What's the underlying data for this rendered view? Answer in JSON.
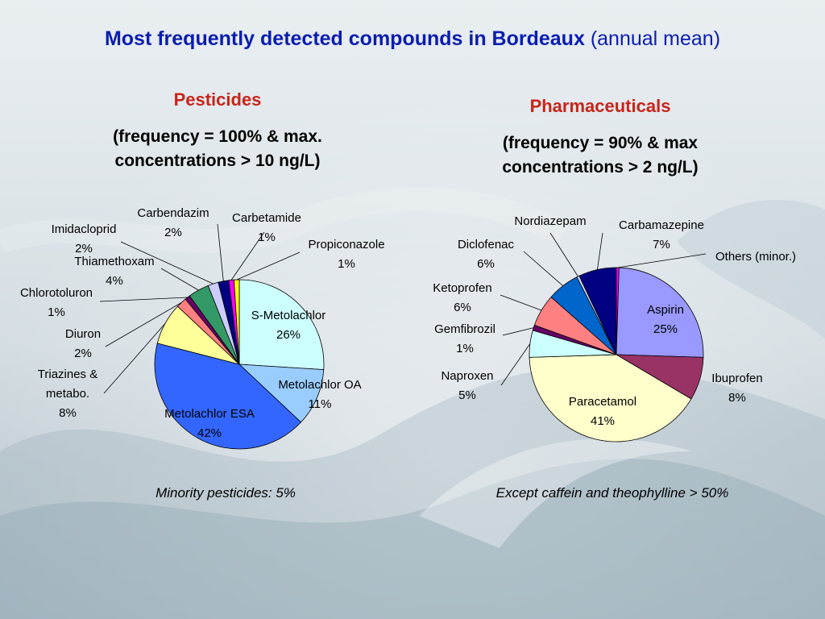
{
  "title": {
    "main": "Most frequently detected compounds in Bordeaux",
    "suffix": "(annual mean)"
  },
  "pesticides": {
    "heading": "Pesticides",
    "criteria_line1": "(frequency = 100% & max.",
    "criteria_line2": "concentrations > 10 ng/L)",
    "footnote": "Minority pesticides: 5%"
  },
  "pharmaceuticals": {
    "heading": "Pharmaceuticals",
    "criteria_line1": "(frequency = 90% & max",
    "criteria_line2": "concentrations > 2 ng/L)",
    "footnote": "Except caffein and theophylline > 50%"
  },
  "chart_data": [
    {
      "type": "pie",
      "start": "12 o'clock",
      "direction": "clockwise",
      "slices": [
        {
          "name": "S-Metolachlor",
          "pct": "26%",
          "value": 26,
          "color": "#ccffff"
        },
        {
          "name": "Metolachlor OA",
          "pct": "11%",
          "value": 11,
          "color": "#99ccff"
        },
        {
          "name": "Metolachlor ESA",
          "pct": "42%",
          "value": 42,
          "color": "#3366ff"
        },
        {
          "name": "Triazines & metabo.",
          "pct": "8%",
          "value": 8,
          "color": "#ffff99"
        },
        {
          "name": "Diuron",
          "pct": "2%",
          "value": 2,
          "color": "#ff8080"
        },
        {
          "name": "Chlorotoluron",
          "pct": "1%",
          "value": 1,
          "color": "#660066"
        },
        {
          "name": "Thiamethoxam",
          "pct": "4%",
          "value": 4,
          "color": "#339966"
        },
        {
          "name": "Imidacloprid",
          "pct": "2%",
          "value": 2,
          "color": "#ccccff"
        },
        {
          "name": "Carbendazim",
          "pct": "2%",
          "value": 2,
          "color": "#000080"
        },
        {
          "name": "Carbetamide",
          "pct": "1%",
          "value": 1,
          "color": "#ff00ff"
        },
        {
          "name": "Propiconazole",
          "pct": "1%",
          "value": 1,
          "color": "#ffff00"
        }
      ]
    },
    {
      "type": "pie",
      "start": "12 o'clock",
      "direction": "clockwise",
      "slices": [
        {
          "name": "Others (minor.)",
          "pct": "",
          "value": 0.5,
          "color": "#ff00ff"
        },
        {
          "name": "Aspirin",
          "pct": "25%",
          "value": 25,
          "color": "#9999ff"
        },
        {
          "name": "Ibuprofen",
          "pct": "8%",
          "value": 8,
          "color": "#993366"
        },
        {
          "name": "Paracetamol",
          "pct": "41%",
          "value": 41,
          "color": "#ffffcc"
        },
        {
          "name": "Naproxen",
          "pct": "5%",
          "value": 5,
          "color": "#ccffff"
        },
        {
          "name": "Gemfibrozil",
          "pct": "1%",
          "value": 1,
          "color": "#660066"
        },
        {
          "name": "Ketoprofen",
          "pct": "6%",
          "value": 6,
          "color": "#ff8080"
        },
        {
          "name": "Diclofenac",
          "pct": "6%",
          "value": 6,
          "color": "#0066cc"
        },
        {
          "name": "Nordiazepam",
          "pct": "",
          "value": 0.5,
          "color": "#ccccff"
        },
        {
          "name": "Carbamazepine",
          "pct": "7%",
          "value": 7,
          "color": "#000080"
        }
      ]
    }
  ]
}
